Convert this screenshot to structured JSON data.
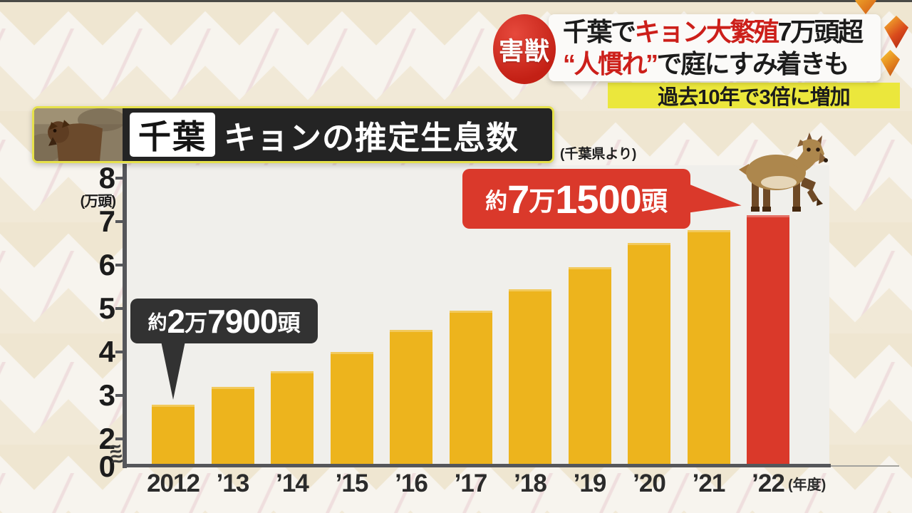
{
  "header": {
    "badge": "害獣",
    "line1_a": "千葉で",
    "line1_b": "キョン大繁殖",
    "line1_c": "7万頭超",
    "line2_a": "“人慣れ”",
    "line2_b": "で庭にすみ着きも",
    "sub_banner": "過去10年で3倍に増加"
  },
  "title_bar": {
    "region_label": "千葉",
    "title": "キョンの推定生息数",
    "source": "(千葉県より)"
  },
  "callout_first": {
    "approx": "約",
    "d1": "2",
    "u1": "万",
    "d2": "7900",
    "suffix": "頭"
  },
  "callout_last": {
    "approx": "約",
    "d1": "7",
    "u1": "万",
    "d2": "1500",
    "suffix": "頭"
  },
  "chart_data": {
    "type": "bar",
    "title": "千葉 キョンの推定生息数",
    "categories": [
      "2012",
      "’13",
      "’14",
      "’15",
      "’16",
      "’17",
      "’18",
      "’19",
      "’20",
      "’21",
      "’22"
    ],
    "values": [
      2.79,
      3.2,
      3.55,
      4.0,
      4.5,
      4.95,
      5.45,
      5.95,
      6.5,
      6.8,
      7.15
    ],
    "annotations": {
      "first_bar": "約2万7900頭",
      "last_bar": "約7万1500頭"
    },
    "ylabel": "(万頭)",
    "x_axis_suffix": "(年度)",
    "y_ticks": [
      8,
      7,
      6,
      5,
      4,
      3,
      2
    ],
    "y_zero_label": "0",
    "axis_break_symbol": "≈",
    "ylim": [
      0,
      8
    ],
    "grid": false,
    "legend": "none",
    "bar_color": "#edb41d",
    "highlight_index": 10,
    "highlight_color": "#da392a"
  },
  "colors": {
    "background": "#f7f4ee",
    "plot_background": "#f0efeb",
    "axis": "#55565a",
    "badge_red": "#c32015",
    "headline_red": "#cc1f1a",
    "banner_yellow": "#ebe73c",
    "title_bar_black": "#242424",
    "title_bar_border_yellow": "#e6e14b",
    "callout_dark": "#323232",
    "callout_red": "#da392b"
  }
}
